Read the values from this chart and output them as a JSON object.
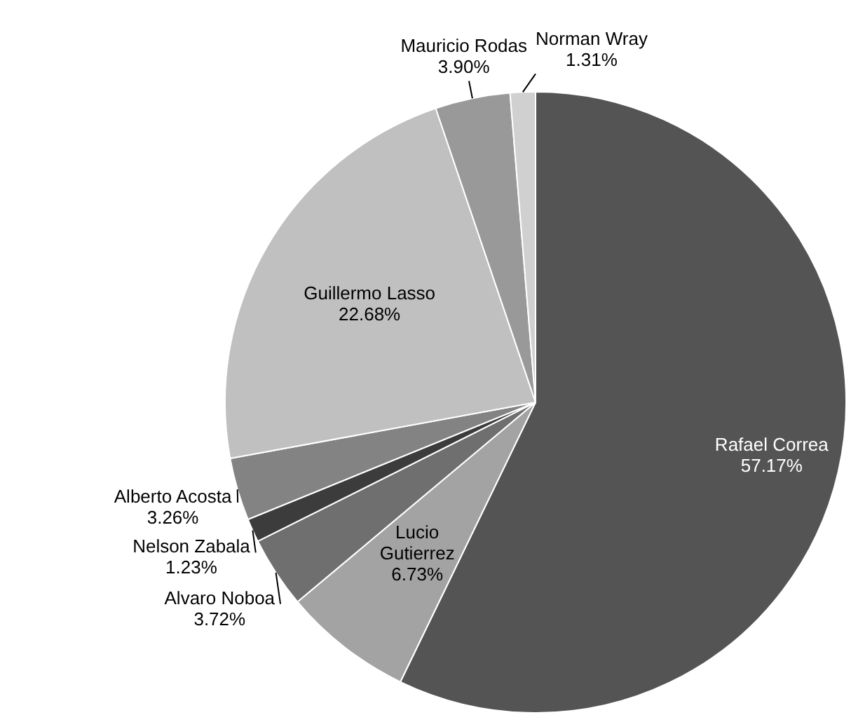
{
  "chart_data": {
    "type": "pie",
    "categories": [
      "Rafael Correa",
      "Lucio Gutierrez",
      "Alvaro Noboa",
      "Nelson Zabala",
      "Alberto Acosta",
      "Guillermo Lasso",
      "Mauricio Rodas",
      "Norman Wray"
    ],
    "values": [
      57.17,
      6.73,
      3.72,
      1.23,
      3.26,
      22.68,
      3.9,
      1.31
    ],
    "colors": [
      "#545454",
      "#a3a3a3",
      "#6f6f6f",
      "#3c3c3c",
      "#838383",
      "#c0c0c0",
      "#999999",
      "#d0d0d0"
    ],
    "value_labels": [
      "57.17%",
      "6.73%",
      "3.72%",
      "1.23%",
      "3.26%",
      "22.68%",
      "3.90%",
      "1.31%"
    ],
    "legend": false
  }
}
